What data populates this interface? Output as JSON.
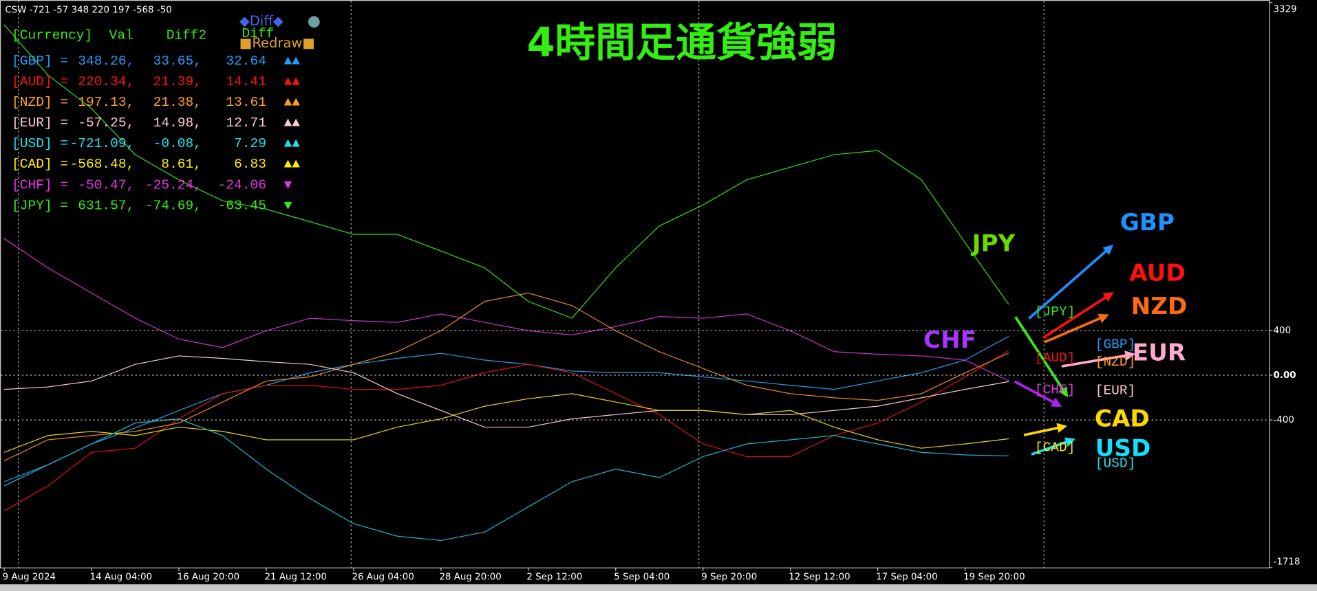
{
  "chart_data": {
    "type": "line",
    "title": "4時間足通貨強弱",
    "status": "CSW -721 -57 348 220 197 -568 -50",
    "categories": [
      "9 Aug 2024",
      null,
      "14 Aug 04:00",
      null,
      "16 Aug 20:00",
      null,
      "21 Aug 12:00",
      null,
      "26 Aug 04:00",
      null,
      "28 Aug 20:00",
      null,
      "2 Sep 12:00",
      null,
      "5 Sep 04:00",
      null,
      "9 Sep 20:00",
      null,
      "12 Sep 12:00",
      null,
      "17 Sep 04:00",
      null,
      "19 Sep 20:00",
      null
    ],
    "series": [
      {
        "name": "JPY",
        "color": "#33dd11",
        "values": [
          3131,
          2682,
          2382,
          1970,
          1745,
          1558,
          1483,
          1371,
          1258,
          1258,
          1109,
          959,
          659,
          509,
          959,
          1333,
          1521,
          1745,
          1858,
          1970,
          2007,
          1745,
          1184,
          632
        ]
      },
      {
        "name": "CHF",
        "color": "#d030d0",
        "values": [
          1221,
          959,
          734,
          509,
          322,
          247,
          397,
          509,
          487,
          472,
          547,
          472,
          397,
          360,
          434,
          524,
          509,
          547,
          397,
          210,
          187,
          172,
          135,
          -50
        ]
      },
      {
        "name": "GBP",
        "color": "#1ca0e8",
        "values": [
          -951,
          -801,
          -614,
          -472,
          -315,
          -165,
          -90,
          22,
          97,
          150,
          195,
          135,
          97,
          37,
          22,
          22,
          -15,
          -52,
          -90,
          -127,
          -52,
          22,
          135,
          348
        ]
      },
      {
        "name": "AUD",
        "color": "#e01010",
        "values": [
          -1213,
          -989,
          -689,
          -652,
          -390,
          -165,
          -90,
          -90,
          -127,
          -127,
          -90,
          22,
          97,
          22,
          -165,
          -352,
          -614,
          -727,
          -727,
          -539,
          -427,
          -240,
          -15,
          220
        ]
      },
      {
        "name": "NZD",
        "color": "#e8891c",
        "values": [
          -764,
          -577,
          -539,
          -502,
          -427,
          -240,
          -52,
          -15,
          97,
          210,
          397,
          659,
          734,
          622,
          397,
          210,
          60,
          -90,
          -165,
          -202,
          -225,
          -165,
          22,
          197
        ]
      },
      {
        "name": "EUR",
        "color": "#f4c8d0",
        "values": [
          -127,
          -105,
          -52,
          97,
          172,
          150,
          120,
          97,
          22,
          -165,
          -315,
          -464,
          -464,
          -390,
          -352,
          -315,
          -315,
          -352,
          -352,
          -315,
          -277,
          -202,
          -127,
          -57
        ]
      },
      {
        "name": "CAD",
        "color": "#e8d800",
        "values": [
          -689,
          -539,
          -502,
          -539,
          -464,
          -502,
          -577,
          -577,
          -577,
          -464,
          -390,
          -277,
          -210,
          -165,
          -240,
          -315,
          -315,
          -352,
          -315,
          -464,
          -577,
          -652,
          -614,
          -568
        ]
      },
      {
        "name": "USD",
        "color": "#18b8d8",
        "values": [
          -989,
          -801,
          -614,
          -427,
          -390,
          -539,
          -839,
          -1101,
          -1326,
          -1438,
          -1476,
          -1401,
          -1176,
          -951,
          -839,
          -914,
          -727,
          -614,
          -577,
          -539,
          -614,
          -689,
          -712,
          -721
        ]
      }
    ],
    "ylim": [
      -1718,
      3329
    ],
    "yticks": [
      3329,
      400,
      {
        "value": 0,
        "label": "0.00"
      },
      -400,
      -1718
    ],
    "grid": true,
    "panel": {
      "legend_diff": "◆Diff◆",
      "legend_dot": "●",
      "redraw": "■Redraw■",
      "header": [
        "[Currency]",
        "Val",
        "Diff2",
        "Diff"
      ],
      "rows": [
        {
          "color": "#1e9fff",
          "cells": [
            "[GBP] =",
            "348.26,",
            "33.65,",
            "32.64",
            "▲▲"
          ]
        },
        {
          "color": "#ff1010",
          "cells": [
            "[AUD] =",
            "220.34,",
            "21.39,",
            "14.41",
            "▲▲"
          ]
        },
        {
          "color": "#ffa020",
          "cells": [
            "[NZD] =",
            "197.13,",
            "21.38,",
            "13.61",
            "▲▲"
          ]
        },
        {
          "color": "#ffc8d0",
          "cells": [
            "[EUR] =",
            "-57.25,",
            "14.98,",
            "12.71",
            "▲▲"
          ]
        },
        {
          "color": "#20e0f0",
          "cells": [
            "[USD] =",
            "-721.09,",
            "-0.08,",
            "7.29",
            "▲▲"
          ]
        },
        {
          "color": "#ffee00",
          "cells": [
            "[CAD] =",
            "-568.48,",
            "8.61,",
            "6.83",
            "▲▲"
          ]
        },
        {
          "color": "#ee30ee",
          "cells": [
            "[CHF] =",
            "-50.47,",
            "-25.24,",
            "-24.06",
            "▼"
          ]
        },
        {
          "color": "#33ee11",
          "cells": [
            "[JPY] =",
            "631.57,",
            "-74.69,",
            "-63.45",
            "▼"
          ]
        }
      ]
    },
    "annotations": [
      {
        "text": "JPY",
        "color": "#66dd00"
      },
      {
        "text": "CHF",
        "color": "#aa33ff"
      },
      {
        "text": "GBP",
        "color": "#1e90ff"
      },
      {
        "text": "AUD",
        "color": "#ff1010"
      },
      {
        "text": "NZD",
        "color": "#ff6a10"
      },
      {
        "text": "EUR",
        "color": "#ffaacc"
      },
      {
        "text": "CAD",
        "color": "#ffd700"
      },
      {
        "text": "USD",
        "color": "#10e0ff"
      },
      {
        "text": "[JPY]",
        "color": "#33ee11"
      },
      {
        "text": "[AUD]",
        "color": "#ff1010"
      },
      {
        "text": "[CHF]",
        "color": "#ee30ee"
      },
      {
        "text": "[CAD]",
        "color": "#ffee00"
      },
      {
        "text": "[GBP]",
        "color": "#1e9fff"
      },
      {
        "text": "[NZD]",
        "color": "#ffa020"
      },
      {
        "text": "[EUR]",
        "color": "#ffc8d0"
      },
      {
        "text": "[USD]",
        "color": "#20e0f0"
      }
    ]
  }
}
